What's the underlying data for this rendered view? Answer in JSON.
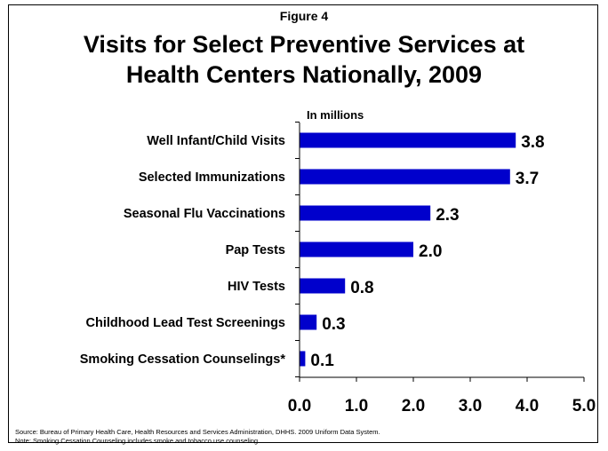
{
  "figure_label": "Figure 4",
  "title_line1": "Visits for Select Preventive Services at",
  "title_line2": "Health Centers Nationally, 2009",
  "source_line": "Source: Bureau of Primary Health Care, Health Resources and Services Administration, DHHS. 2009 Uniform Data System.",
  "note_line": "Note: Smoking Cessation Counseling includes smoke and tobacco use counseling.",
  "chart_data": {
    "type": "bar",
    "orientation": "horizontal",
    "unit_label": "In millions",
    "categories": [
      "Well Infant/Child Visits",
      "Selected Immunizations",
      "Seasonal Flu Vaccinations",
      "Pap Tests",
      "HIV Tests",
      "Childhood Lead Test Screenings",
      "Smoking Cessation Counselings*"
    ],
    "values": [
      3.8,
      3.7,
      2.3,
      2.0,
      0.8,
      0.3,
      0.1
    ],
    "value_labels": [
      "3.8",
      "3.7",
      "2.3",
      "2.0",
      "0.8",
      "0.3",
      "0.1"
    ],
    "xlim": [
      0,
      5
    ],
    "xticks": [
      "0.0",
      "1.0",
      "2.0",
      "3.0",
      "4.0",
      "5.0"
    ],
    "bar_color": "#0000CC",
    "grid": false
  }
}
